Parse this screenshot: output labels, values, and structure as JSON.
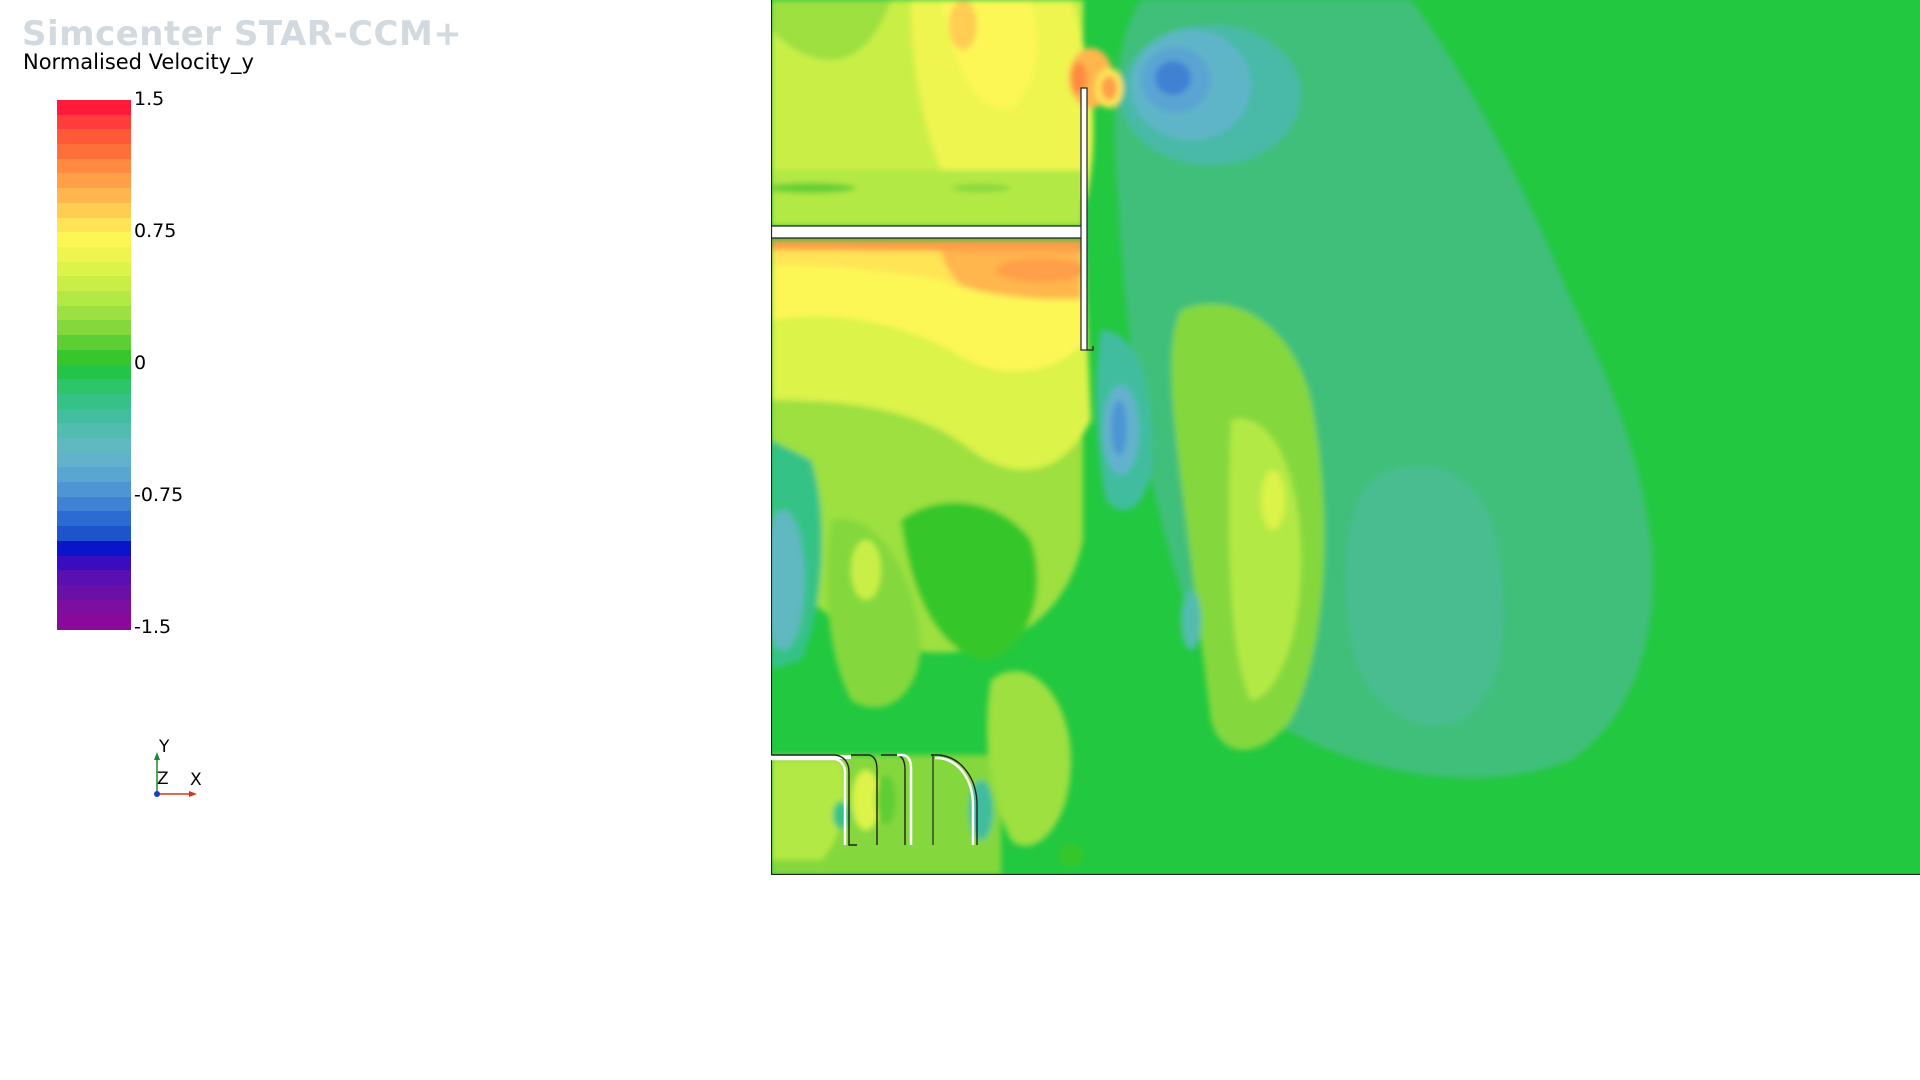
{
  "app": {
    "name": "Simcenter STAR-CCM+"
  },
  "scene": {
    "scalar_name": "Normalised Velocity_y",
    "colorbar": {
      "ticks": [
        "1.5",
        "0.75",
        "0",
        "-0.75",
        "-1.5"
      ],
      "min": -1.5,
      "max": 1.5,
      "colors": [
        "#ff1a3a",
        "#ff3d3a",
        "#ff5a37",
        "#ff6f3a",
        "#ff8a40",
        "#ff9f48",
        "#ffb64e",
        "#ffcd52",
        "#ffe556",
        "#fdf756",
        "#eef54f",
        "#dcf34a",
        "#c9ef46",
        "#b3e944",
        "#9de041",
        "#84d83c",
        "#5ece35",
        "#36c72c",
        "#22c548",
        "#2dc46a",
        "#36c287",
        "#41bd9f",
        "#52bcae",
        "#60b8c0",
        "#63b2cd",
        "#5aa6d3",
        "#4e95d4",
        "#3f81d4",
        "#2c6bd2",
        "#1d53cb",
        "#0a14c9",
        "#3a0cc0",
        "#5810b2",
        "#6b10a7",
        "#7d0fa0",
        "#8a099a"
      ]
    },
    "axes": {
      "y": "Y",
      "z": "Z",
      "x": "X"
    },
    "colors": {
      "green_base": "#22c840",
      "teal": "#3fbf80",
      "blue_low": "#3a78d2",
      "yellow_high": "#f4f35a",
      "orange_high": "#ff9f48"
    }
  }
}
